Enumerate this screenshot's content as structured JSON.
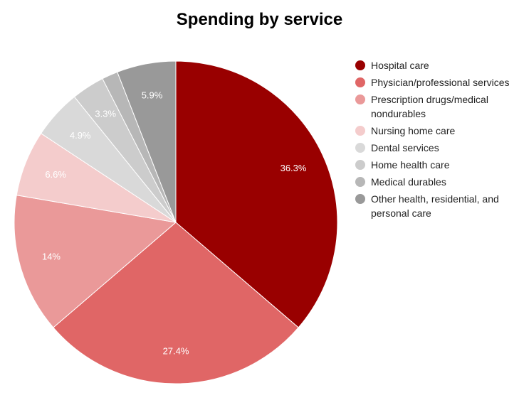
{
  "chart_data": {
    "type": "pie",
    "title": "Spending by service",
    "legend_position": "right",
    "slices": [
      {
        "name": "Hospital care",
        "value": 36.3,
        "label": "36.3%",
        "color": "#990000"
      },
      {
        "name": "Physician/professional services",
        "value": 27.4,
        "label": "27.4%",
        "color": "#e06666"
      },
      {
        "name": "Prescription drugs/medical nondurables",
        "value": 14,
        "label": "14%",
        "color": "#ea9999"
      },
      {
        "name": "Nursing home care",
        "value": 6.6,
        "label": "6.6%",
        "color": "#f4cccc"
      },
      {
        "name": "Dental services",
        "value": 4.9,
        "label": "4.9%",
        "color": "#d9d9d9"
      },
      {
        "name": "Home health care",
        "value": 3.3,
        "label": "3.3%",
        "color": "#cccccc"
      },
      {
        "name": "Medical durables",
        "value": 1.6,
        "label": "",
        "color": "#b7b7b7"
      },
      {
        "name": "Other health, residential, and personal care",
        "value": 5.9,
        "label": "5.9%",
        "color": "#999999"
      }
    ]
  }
}
